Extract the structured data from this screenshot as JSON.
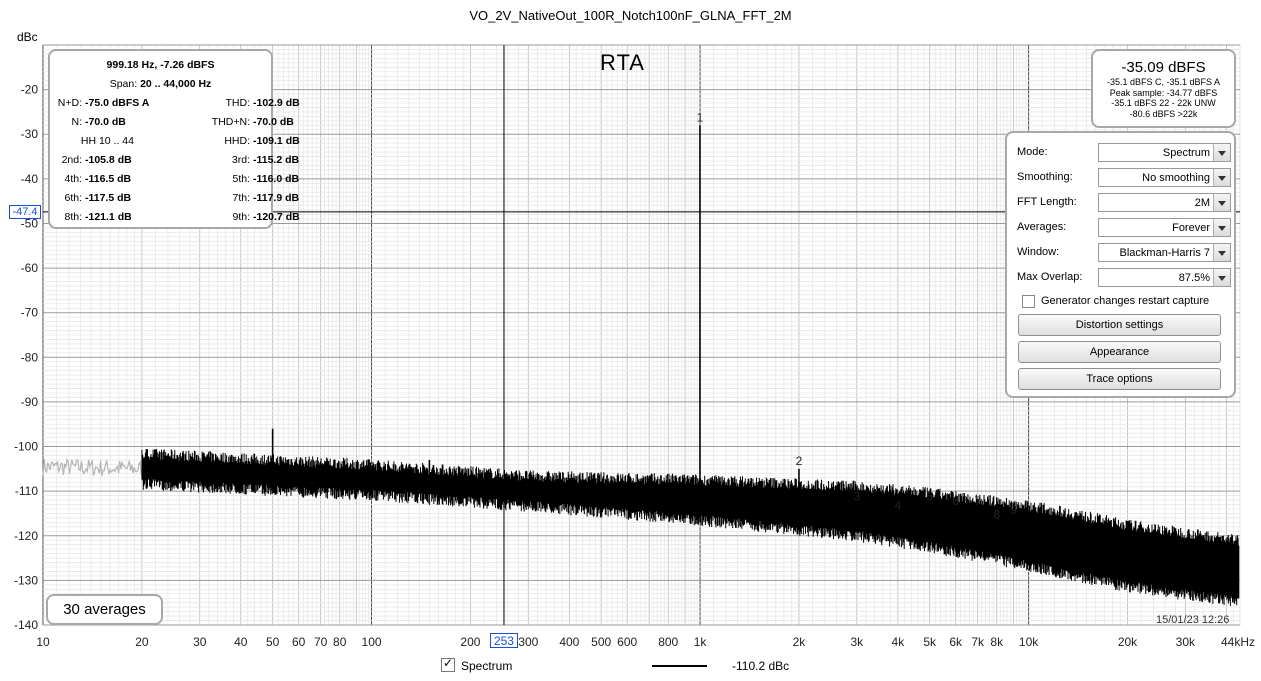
{
  "window": {
    "title": "VO_2V_NativeOut_100R_Notch100nF_GLNA_FFT_2M"
  },
  "chart_data": {
    "type": "line",
    "title": "RTA",
    "ylabel": "dBc",
    "xunit": "kHz",
    "xscale": "log",
    "xlim": [
      10,
      44000
    ],
    "ylim": [
      -140,
      -10
    ],
    "yticks": [
      -20,
      -30,
      -40,
      -50,
      -60,
      -70,
      -80,
      -90,
      -100,
      -110,
      -120,
      -130,
      -140
    ],
    "xticks": [
      {
        "v": 10,
        "label": "10"
      },
      {
        "v": 20,
        "label": "20"
      },
      {
        "v": 30,
        "label": "30"
      },
      {
        "v": 40,
        "label": "40"
      },
      {
        "v": 50,
        "label": "50"
      },
      {
        "v": 60,
        "label": "60"
      },
      {
        "v": 70,
        "label": "70"
      },
      {
        "v": 80,
        "label": "80"
      },
      {
        "v": 100,
        "label": "100"
      },
      {
        "v": 200,
        "label": "200"
      },
      {
        "v": 300,
        "label": "300"
      },
      {
        "v": 400,
        "label": "400"
      },
      {
        "v": 500,
        "label": "500"
      },
      {
        "v": 600,
        "label": "600"
      },
      {
        "v": 800,
        "label": "800"
      },
      {
        "v": 1000,
        "label": "1k"
      },
      {
        "v": 2000,
        "label": "2k"
      },
      {
        "v": 3000,
        "label": "3k"
      },
      {
        "v": 4000,
        "label": "4k"
      },
      {
        "v": 5000,
        "label": "5k"
      },
      {
        "v": 6000,
        "label": "6k"
      },
      {
        "v": 7000,
        "label": "7k"
      },
      {
        "v": 8000,
        "label": "8k"
      },
      {
        "v": 10000,
        "label": "10k"
      },
      {
        "v": 20000,
        "label": "20k"
      },
      {
        "v": 30000,
        "label": "30k"
      },
      {
        "v": 44000,
        "label": "44kHz"
      }
    ],
    "grid": true,
    "series": [
      {
        "name": "Spectrum",
        "color": "#000000",
        "noise_floor": [
          [
            20,
            -105
          ],
          [
            100,
            -107.5
          ],
          [
            300,
            -110
          ],
          [
            1000,
            -112
          ],
          [
            3000,
            -114.5
          ],
          [
            5000,
            -116.5
          ],
          [
            10000,
            -120
          ],
          [
            20000,
            -124.5
          ],
          [
            44000,
            -128
          ]
        ],
        "below_20hz_floor": [
          [
            10,
            -104.5
          ],
          [
            20,
            -105
          ]
        ],
        "below_20hz_color": "#b4b4b4",
        "peaks": [
          {
            "f": 50,
            "level": -96
          },
          {
            "f": 150,
            "level": -103
          },
          {
            "f": 999.18,
            "level": -28,
            "marker": "1"
          },
          {
            "f": 2000,
            "level": -105,
            "marker": "2"
          },
          {
            "f": 3000,
            "level": -113,
            "marker": "3"
          },
          {
            "f": 4000,
            "level": -115,
            "marker": "4"
          },
          {
            "f": 5000,
            "level": -113,
            "marker": "5"
          },
          {
            "f": 6000,
            "level": -114,
            "marker": "6"
          },
          {
            "f": 7000,
            "level": -114,
            "marker": "7"
          },
          {
            "f": 8000,
            "level": -117,
            "marker": "8"
          },
          {
            "f": 9000,
            "level": -116,
            "marker": "9"
          }
        ]
      }
    ],
    "cursor": {
      "x": 253,
      "x_label": "253",
      "y": -47.4,
      "y_label": "-47.4"
    },
    "legend": {
      "name": "Spectrum",
      "value": "-110.2 dBc",
      "placement": "bottom-center"
    },
    "annotations": {
      "averages": "30 averages",
      "timestamp": "15/01/23 12:26"
    }
  },
  "distortion": {
    "header": "999.18 Hz, -7.26 dBFS",
    "span_label": "Span:",
    "span_value": "20 .. 44,000 Hz",
    "rows": [
      [
        {
          "k": "N+D:",
          "v": "-75.0 dBFS A"
        },
        {
          "k": "THD:",
          "v": "-102.9 dB"
        }
      ],
      [
        {
          "k": "N:",
          "v": "-70.0 dB"
        },
        {
          "k": "THD+N:",
          "v": "-70.0 dB"
        }
      ],
      [
        {
          "k": "HH 10 .. 44",
          "v": ""
        },
        {
          "k": "HHD:",
          "v": "-109.1 dB"
        }
      ],
      [
        {
          "k": "2nd:",
          "v": "-105.8 dB"
        },
        {
          "k": "3rd:",
          "v": "-115.2 dB"
        }
      ],
      [
        {
          "k": "4th:",
          "v": "-116.5 dB"
        },
        {
          "k": "5th:",
          "v": "-116.0 dB"
        }
      ],
      [
        {
          "k": "6th:",
          "v": "-117.5 dB"
        },
        {
          "k": "7th:",
          "v": "-117.9 dB"
        }
      ],
      [
        {
          "k": "8th:",
          "v": "-121.1 dB"
        },
        {
          "k": "9th:",
          "v": "-120.7 dB"
        }
      ]
    ]
  },
  "level": {
    "big": "-35.09 dBFS",
    "lines": [
      "-35.1 dBFS C, -35.1 dBFS A",
      "Peak sample: -34.77 dBFS",
      "-35.1 dBFS 22 - 22k UNW",
      "-80.6 dBFS >22k"
    ]
  },
  "controls": {
    "mode": {
      "label": "Mode:",
      "value": "Spectrum"
    },
    "smoothing": {
      "label": "Smoothing:",
      "value": "No  smoothing"
    },
    "fft_length": {
      "label": "FFT Length:",
      "value": "2M"
    },
    "averages": {
      "label": "Averages:",
      "value": "Forever"
    },
    "window": {
      "label": "Window:",
      "value": "Blackman-Harris 7"
    },
    "max_overlap": {
      "label": "Max Overlap:",
      "value": "87.5%"
    },
    "generator_restart": {
      "label": "Generator changes restart capture",
      "checked": false
    },
    "buttons": {
      "distortion": "Distortion settings",
      "appearance": "Appearance",
      "trace": "Trace options"
    }
  }
}
